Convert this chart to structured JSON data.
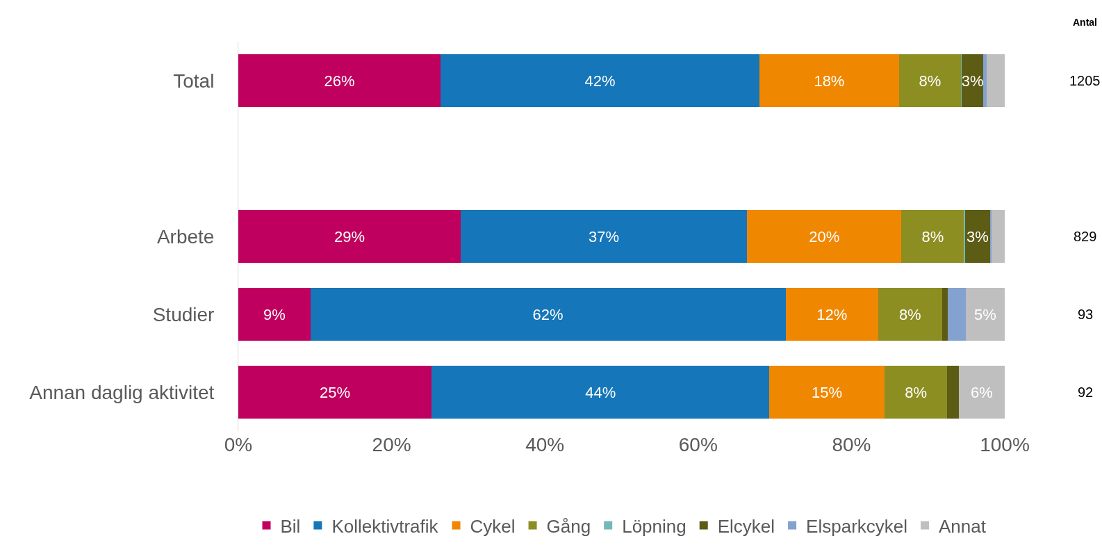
{
  "chart_data": {
    "type": "bar",
    "orientation": "horizontal",
    "stacked": true,
    "categories": [
      "Total",
      null,
      "Arbete",
      "Studier",
      "Annan daglig aktivitet"
    ],
    "series": [
      {
        "name": "Bil",
        "color": "#c0005e",
        "values": [
          26.4,
          null,
          29.0,
          9.4,
          25.2
        ],
        "value_labels": [
          "26%",
          null,
          "29%",
          "9%",
          "25%"
        ]
      },
      {
        "name": "Kollektivtrafik",
        "color": "#1576b9",
        "values": [
          41.6,
          null,
          37.4,
          62.0,
          44.1
        ],
        "value_labels": [
          "42%",
          null,
          "37%",
          "62%",
          "44%"
        ]
      },
      {
        "name": "Cykel",
        "color": "#f08700",
        "values": [
          18.2,
          null,
          20.1,
          12.1,
          15.0
        ],
        "value_labels": [
          "18%",
          null,
          "20%",
          "12%",
          "15%"
        ]
      },
      {
        "name": "Gång",
        "color": "#8d8e22",
        "values": [
          8.1,
          null,
          8.2,
          8.3,
          8.2
        ],
        "value_labels": [
          "8%",
          null,
          "8%",
          "8%",
          "8%"
        ]
      },
      {
        "name": "Löpning",
        "color": "#74b8b8",
        "values": [
          0.1,
          null,
          0.1,
          0,
          0
        ],
        "value_labels": [
          null,
          null,
          null,
          null,
          null
        ]
      },
      {
        "name": "Elcykel",
        "color": "#5c5c14",
        "values": [
          2.8,
          null,
          3.3,
          0.8,
          1.5
        ],
        "value_labels": [
          "3%",
          null,
          "3%",
          null,
          null
        ]
      },
      {
        "name": "Elsparkcykel",
        "color": "#84a2cf",
        "values": [
          0.4,
          null,
          0.2,
          2.3,
          0
        ],
        "value_labels": [
          null,
          null,
          null,
          null,
          null
        ]
      },
      {
        "name": "Annat",
        "color": "#bfbfbf",
        "values": [
          2.4,
          null,
          1.7,
          5.1,
          6.0
        ],
        "value_labels": [
          null,
          null,
          null,
          "5%",
          "6%"
        ]
      }
    ],
    "xlim": [
      0,
      100
    ],
    "xticks": [
      {
        "value": 0,
        "label": "0%"
      },
      {
        "value": 20,
        "label": "20%"
      },
      {
        "value": 40,
        "label": "40%"
      },
      {
        "value": 60,
        "label": "60%"
      },
      {
        "value": 80,
        "label": "80%"
      },
      {
        "value": 100,
        "label": "100%"
      }
    ],
    "legend": "bottom",
    "annotations": [
      "Antal",
      "1205",
      "829",
      "93",
      "92"
    ]
  }
}
